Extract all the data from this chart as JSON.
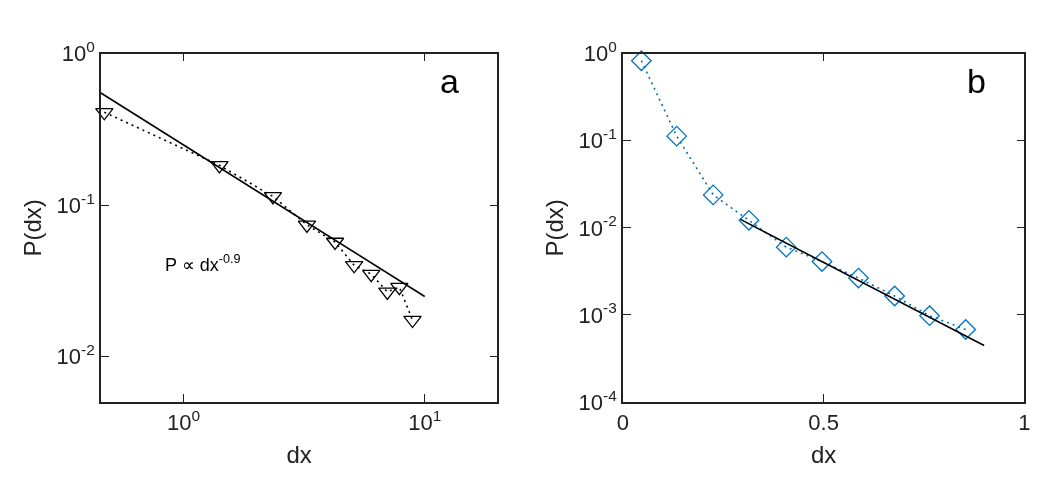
{
  "chart_data": [
    {
      "type": "line",
      "title": "a",
      "xlabel": "dx",
      "ylabel": "P(dx)",
      "log": "xy",
      "xlim": [
        0.455,
        20
      ],
      "ylim": [
        0.005,
        1
      ],
      "xticks": [
        {
          "value": 1,
          "label": "10$^{0}$"
        },
        {
          "value": 10,
          "label": "10$^{1}$"
        }
      ],
      "yticks": [
        {
          "value": 0.01,
          "label": "10$^{-2}$"
        },
        {
          "value": 0.1,
          "label": "10$^{-1}$"
        },
        {
          "value": 1,
          "label": "10$^{0}$"
        }
      ],
      "annotations": [
        "P ∝ dx$^{-0.9}$"
      ],
      "series": [
        {
          "x": [
            0.47,
            1.41,
            2.35,
            3.25,
            4.25,
            5.1,
            6.0,
            7.0,
            7.85,
            8.9
          ],
          "values": [
            0.41,
            0.183,
            0.114,
            0.074,
            0.057,
            0.04,
            0.035,
            0.0267,
            0.0287,
            0.0174
          ],
          "color": "#000000",
          "marker": "triangle",
          "line_style": "dotted"
        },
        {
          "x": [
            0.455,
            10
          ],
          "values": [
            0.55,
            0.0249
          ],
          "color": "#000000",
          "marker": "none",
          "line_style": "solid"
        }
      ]
    },
    {
      "type": "line",
      "title": "b",
      "xlabel": "dx",
      "ylabel": "P(dx)",
      "log": "y",
      "xlim": [
        0,
        1
      ],
      "ylim": [
        0.0001,
        1
      ],
      "xticks": [
        0,
        0.5,
        1
      ],
      "yticks": [
        {
          "value": 0.0001,
          "label": "10$^{-4}$"
        },
        {
          "value": 0.001,
          "label": "10$^{-3}$"
        },
        {
          "value": 0.01,
          "label": "10$^{-2}$"
        },
        {
          "value": 0.1,
          "label": "10$^{-1}$"
        },
        {
          "value": 1,
          "label": "10$^{0}$"
        }
      ],
      "series": [
        {
          "x": [
            0.046,
            0.134,
            0.225,
            0.314,
            0.407,
            0.496,
            0.587,
            0.677,
            0.764,
            0.854
          ],
          "values": [
            0.83,
            0.113,
            0.0239,
            0.0122,
            0.006,
            0.0041,
            0.00265,
            0.00165,
            0.00098,
            0.00068
          ],
          "color": "#0072bd",
          "marker": "diamond",
          "line_style": "dotted"
        },
        {
          "x": [
            0.293,
            0.9
          ],
          "values": [
            0.0125,
            0.000445
          ],
          "color": "#000000",
          "marker": "none",
          "line_style": "solid"
        }
      ]
    }
  ]
}
